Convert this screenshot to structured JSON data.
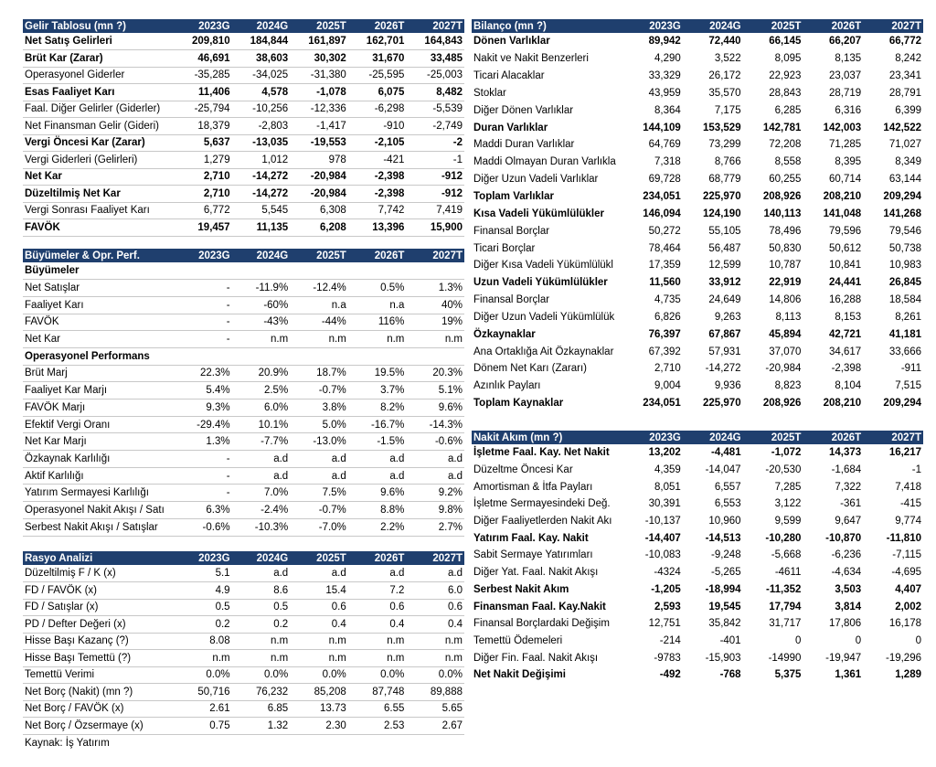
{
  "tables": [
    {
      "title": "Gelir Tablosu (mn ?)",
      "columns": [
        "2023G",
        "2024G",
        "2025T",
        "2026T",
        "2027T"
      ],
      "rows": [
        [
          "Net Satış Gelirleri",
          "209,810",
          "184,844",
          "161,897",
          "162,701",
          "164,843"
        ],
        [
          "Brüt Kar (Zarar)",
          "46,691",
          "38,603",
          "30,302",
          "31,670",
          "33,485"
        ],
        [
          "Operasyonel Giderler",
          "-35,285",
          "-34,025",
          "-31,380",
          "-25,595",
          "-25,003"
        ],
        [
          "Esas Faaliyet Karı",
          "11,406",
          "4,578",
          "-1,078",
          "6,075",
          "8,482"
        ],
        [
          "Faal. Diğer Gelirler (Giderler)",
          "-25,794",
          "-10,256",
          "-12,336",
          "-6,298",
          "-5,539"
        ],
        [
          "Net Finansman Gelir (Gideri)",
          "18,379",
          "-2,803",
          "-1,417",
          "-910",
          "-2,749"
        ],
        [
          "Vergi Öncesi Kar (Zarar)",
          "5,637",
          "-13,035",
          "-19,553",
          "-2,105",
          "-2"
        ],
        [
          "Vergi Giderleri (Gelirleri)",
          "1,279",
          "1,012",
          "978",
          "-421",
          "-1"
        ],
        [
          "Net Kar",
          "2,710",
          "-14,272",
          "-20,984",
          "-2,398",
          "-912"
        ],
        [
          "Düzeltilmiş Net Kar",
          "2,710",
          "-14,272",
          "-20,984",
          "-2,398",
          "-912"
        ],
        [
          "Vergi Sonrası Faaliyet Karı",
          "6,772",
          "5,545",
          "6,308",
          "7,742",
          "7,419"
        ],
        [
          "FAVÖK",
          "19,457",
          "11,135",
          "6,208",
          "13,396",
          "15,900"
        ]
      ]
    },
    {
      "title": "Büyümeler & Opr. Perf.",
      "columns": [
        "2023G",
        "2024G",
        "2025T",
        "2026T",
        "2027T"
      ],
      "rows": [
        [
          "Büyümeler"
        ],
        [
          "Net Satışlar",
          "-",
          "-11.9%",
          "-12.4%",
          "0.5%",
          "1.3%"
        ],
        [
          "Faaliyet Karı",
          "-",
          "-60%",
          "n.a",
          "n.a",
          "40%"
        ],
        [
          "FAVÖK",
          "-",
          "-43%",
          "-44%",
          "116%",
          "19%"
        ],
        [
          "Net Kar",
          "-",
          "n.m",
          "n.m",
          "n.m",
          "n.m"
        ],
        [
          "Operasyonel Performans"
        ],
        [
          "Brüt Marj",
          "22.3%",
          "20.9%",
          "18.7%",
          "19.5%",
          "20.3%"
        ],
        [
          "Faaliyet Kar Marjı",
          "5.4%",
          "2.5%",
          "-0.7%",
          "3.7%",
          "5.1%"
        ],
        [
          "FAVÖK Marjı",
          "9.3%",
          "6.0%",
          "3.8%",
          "8.2%",
          "9.6%"
        ],
        [
          "Efektif Vergi Oranı",
          "-29.4%",
          "10.1%",
          "5.0%",
          "-16.7%",
          "-14.3%"
        ],
        [
          "Net Kar Marjı",
          "1.3%",
          "-7.7%",
          "-13.0%",
          "-1.5%",
          "-0.6%"
        ],
        [
          "Özkaynak Karlılığı",
          "-",
          "a.d",
          "a.d",
          "a.d",
          "a.d"
        ],
        [
          "Aktif Karlılığı",
          "-",
          "a.d",
          "a.d",
          "a.d",
          "a.d"
        ],
        [
          "Yatırım Sermayesi Karlılığı",
          "-",
          "7.0%",
          "7.5%",
          "9.6%",
          "9.2%"
        ],
        [
          "Operasyonel Nakit Akışı / Satı",
          "6.3%",
          "-2.4%",
          "-0.7%",
          "8.8%",
          "9.8%"
        ],
        [
          "Serbest Nakit Akışı / Satışlar",
          "-0.6%",
          "-10.3%",
          "-7.0%",
          "2.2%",
          "2.7%"
        ]
      ]
    },
    {
      "title": "Rasyo Analizi",
      "columns": [
        "2023G",
        "2024G",
        "2025T",
        "2026T",
        "2027T"
      ],
      "rows": [
        [
          "Düzeltilmiş F / K (x)",
          "5.1",
          "a.d",
          "a.d",
          "a.d",
          "a.d"
        ],
        [
          "FD / FAVÖK (x)",
          "4.9",
          "8.6",
          "15.4",
          "7.2",
          "6.0"
        ],
        [
          "FD / Satışlar (x)",
          "0.5",
          "0.5",
          "0.6",
          "0.6",
          "0.6"
        ],
        [
          "PD / Defter Değeri (x)",
          "0.2",
          "0.2",
          "0.4",
          "0.4",
          "0.4"
        ],
        [
          "Hisse Başı Kazanç (?)",
          "8.08",
          "n.m",
          "n.m",
          "n.m",
          "n.m"
        ],
        [
          "Hisse Başı Temettü (?)",
          "n.m",
          "n.m",
          "n.m",
          "n.m",
          "n.m"
        ],
        [
          "Temettü Verimi",
          "0.0%",
          "0.0%",
          "0.0%",
          "0.0%",
          "0.0%"
        ],
        [
          "Net Borç (Nakit) (mn ?)",
          "50,716",
          "76,232",
          "85,208",
          "87,748",
          "89,888"
        ],
        [
          "Net Borç / FAVÖK (x)",
          "2.61",
          "6.85",
          "13.73",
          "6.55",
          "5.65"
        ],
        [
          "Net Borç  / Özsermaye (x)",
          "0.75",
          "1.32",
          "2.30",
          "2.53",
          "2.67"
        ]
      ]
    },
    {
      "title": "Bilanço (mn ?)",
      "columns": [
        "2023G",
        "2024G",
        "2025T",
        "2026T",
        "2027T"
      ],
      "rows": [
        [
          "Dönen Varlıklar",
          "89,942",
          "72,440",
          "66,145",
          "66,207",
          "66,772"
        ],
        [
          "Nakit ve Nakit Benzerleri",
          "4,290",
          "3,522",
          "8,095",
          "8,135",
          "8,242"
        ],
        [
          "Ticari Alacaklar",
          "33,329",
          "26,172",
          "22,923",
          "23,037",
          "23,341"
        ],
        [
          "Stoklar",
          "43,959",
          "35,570",
          "28,843",
          "28,719",
          "28,791"
        ],
        [
          "Diğer Dönen Varlıklar",
          "8,364",
          "7,175",
          "6,285",
          "6,316",
          "6,399"
        ],
        [
          "Duran Varlıklar",
          "144,109",
          "153,529",
          "142,781",
          "142,003",
          "142,522"
        ],
        [
          "Maddi Duran Varlıklar",
          "64,769",
          "73,299",
          "72,208",
          "71,285",
          "71,027"
        ],
        [
          "Maddi Olmayan Duran Varlıkla",
          "7,318",
          "8,766",
          "8,558",
          "8,395",
          "8,349"
        ],
        [
          "Diğer Uzun Vadeli Varlıklar",
          "69,728",
          "68,779",
          "60,255",
          "60,714",
          "63,144"
        ],
        [
          "Toplam Varlıklar",
          "234,051",
          "225,970",
          "208,926",
          "208,210",
          "209,294"
        ],
        [
          "Kısa Vadeli Yükümlülükler",
          "146,094",
          "124,190",
          "140,113",
          "141,048",
          "141,268"
        ],
        [
          "Finansal Borçlar",
          "50,272",
          "55,105",
          "78,496",
          "79,596",
          "79,546"
        ],
        [
          "Ticari Borçlar",
          "78,464",
          "56,487",
          "50,830",
          "50,612",
          "50,738"
        ],
        [
          "Diğer Kısa Vadeli Yükümlülükl",
          "17,359",
          "12,599",
          "10,787",
          "10,841",
          "10,983"
        ],
        [
          "Uzun Vadeli Yükümlülükler",
          "11,560",
          "33,912",
          "22,919",
          "24,441",
          "26,845"
        ],
        [
          "Finansal Borçlar",
          "4,735",
          "24,649",
          "14,806",
          "16,288",
          "18,584"
        ],
        [
          "Diğer Uzun Vadeli Yükümlülük",
          "6,826",
          "9,263",
          "8,113",
          "8,153",
          "8,261"
        ],
        [
          "Özkaynaklar",
          "76,397",
          "67,867",
          "45,894",
          "42,721",
          "41,181"
        ],
        [
          "Ana Ortaklığa Ait Özkaynaklar",
          "67,392",
          "57,931",
          "37,070",
          "34,617",
          "33,666"
        ],
        [
          "Dönem Net Karı (Zararı)",
          "2,710",
          "-14,272",
          "-20,984",
          "-2,398",
          "-911"
        ],
        [
          "Azınlık Payları",
          "9,004",
          "9,936",
          "8,823",
          "8,104",
          "7,515"
        ],
        [
          "Toplam Kaynaklar",
          "234,051",
          "225,970",
          "208,926",
          "208,210",
          "209,294"
        ]
      ]
    },
    {
      "title": "Nakit Akım (mn ?)",
      "columns": [
        "2023G",
        "2024G",
        "2025T",
        "2026T",
        "2027T"
      ],
      "rows": [
        [
          "İşletme Faal. Kay. Net Nakit",
          "13,202",
          "-4,481",
          "-1,072",
          "14,373",
          "16,217"
        ],
        [
          "Düzeltme Öncesi Kar",
          "4,359",
          "-14,047",
          "-20,530",
          "-1,684",
          "-1"
        ],
        [
          "Amortisman & İtfa Payları",
          "8,051",
          "6,557",
          "7,285",
          "7,322",
          "7,418"
        ],
        [
          "İşletme Sermayesindeki Değ.",
          "30,391",
          "6,553",
          "3,122",
          "-361",
          "-415"
        ],
        [
          "Diğer Faaliyetlerden Nakit Akı",
          "-10,137",
          "10,960",
          "9,599",
          "9,647",
          "9,774"
        ],
        [
          "Yatırım Faal. Kay. Nakit",
          "-14,407",
          "-14,513",
          "-10,280",
          "-10,870",
          "-11,810"
        ],
        [
          "Sabit Sermaye Yatırımları",
          "-10,083",
          "-9,248",
          "-5,668",
          "-6,236",
          "-7,115"
        ],
        [
          "Diğer Yat. Faal. Nakit Akışı",
          "-4324",
          "-5,265",
          "-4611",
          "-4,634",
          "-4,695"
        ],
        [
          "Serbest Nakit Akım",
          "-1,205",
          "-18,994",
          "-11,352",
          "3,503",
          "4,407"
        ],
        [
          "Finansman Faal. Kay.Nakit",
          "2,593",
          "19,545",
          "17,794",
          "3,814",
          "2,002"
        ],
        [
          "Finansal Borçlardaki Değişim",
          "12,751",
          "35,842",
          "31,717",
          "17,806",
          "16,178"
        ],
        [
          "Temettü Ödemeleri",
          "-214",
          "-401",
          "0",
          "0",
          "0"
        ],
        [
          "Diğer Fin. Faal. Nakit Akışı",
          "-9783",
          "-15,903",
          "-14990",
          "-19,947",
          "-19,296"
        ],
        [
          "Net Nakit Değişimi",
          "-492",
          "-768",
          "5,375",
          "1,361",
          "1,289"
        ]
      ]
    }
  ],
  "source": "Kaynak: İş Yatırım"
}
